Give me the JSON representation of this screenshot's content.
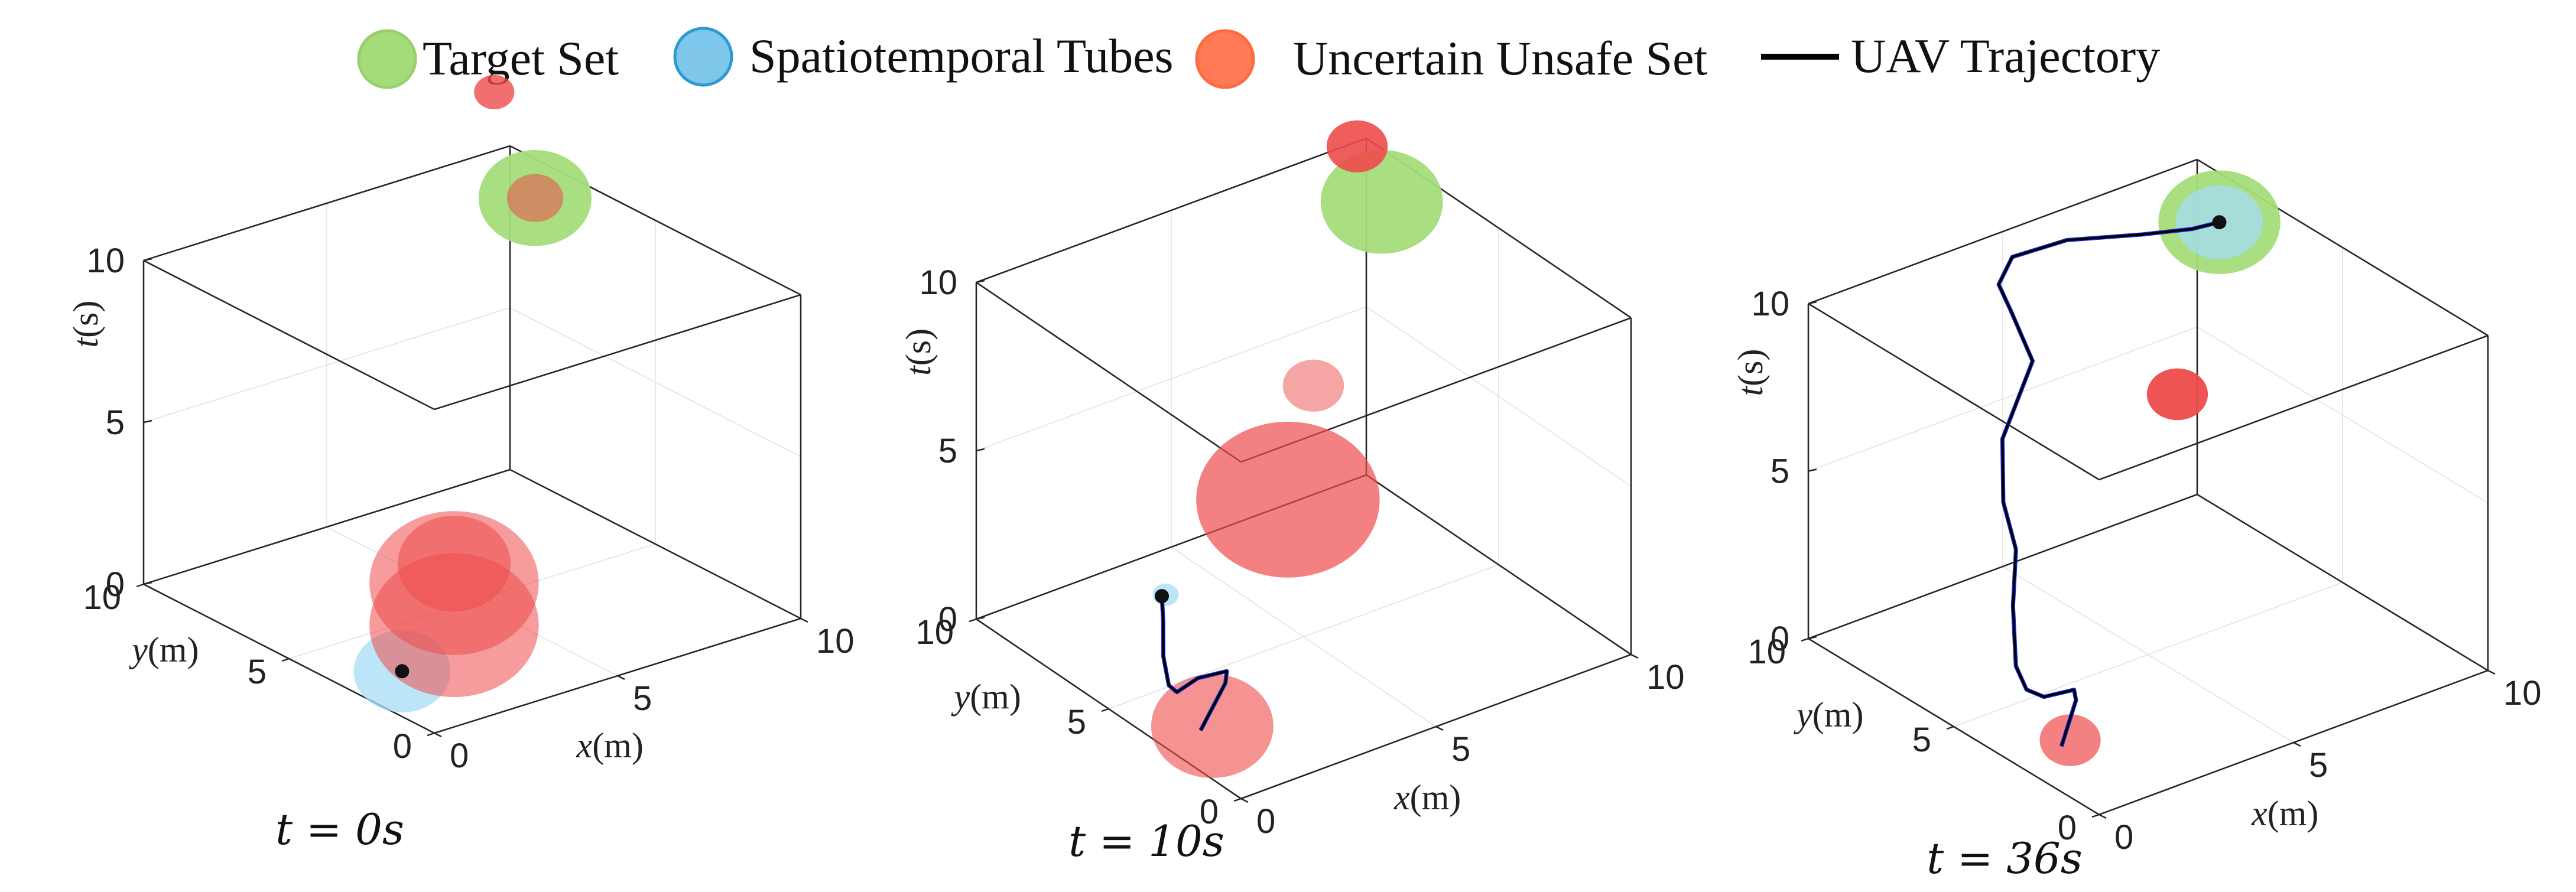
{
  "legend": [
    {
      "label": "Target Set",
      "color": "#a4dc7a",
      "stroke": "#97d06c",
      "kind": "circle"
    },
    {
      "label": "Spatiotemporal Tubes",
      "color": "#7ec7ea",
      "stroke": "#2d9ad4",
      "kind": "circle"
    },
    {
      "label": "Uncertain Unsafe Set",
      "color": "#ff7a55",
      "stroke": "#ff6a40",
      "kind": "circle"
    },
    {
      "label": "UAV Trajectory",
      "color": "#000000",
      "kind": "line"
    }
  ],
  "axes": {
    "x_label": {
      "var": "x",
      "unit": "(m)"
    },
    "y_label": {
      "var": "y",
      "unit": "(m)"
    },
    "t_label": {
      "var": "t",
      "unit": "(s)"
    },
    "xy_ticks": [
      "0",
      "5",
      "10"
    ],
    "t_ticks": [
      "0",
      "5",
      "10"
    ]
  },
  "panels": [
    {
      "caption": {
        "var": "t",
        "eq": "=",
        "value": "0s"
      },
      "target": {
        "x": 8.7,
        "y": 7.5,
        "t": 10,
        "r": 1.4
      },
      "unsafe": [
        {
          "x": 8.3,
          "y": 8.4,
          "t": 13,
          "r": 0.5,
          "opacity": 0.8
        },
        {
          "x": 8.7,
          "y": 7.5,
          "t": 10,
          "r": 0.7,
          "opacity": 0.55
        },
        {
          "x": 5.3,
          "y": 6.0,
          "t": 0.6,
          "r": 1.4,
          "opacity": 0.55
        },
        {
          "x": 5.3,
          "y": 6.0,
          "t": 0.0,
          "r": 2.1,
          "opacity": 0.55
        },
        {
          "x": 5.3,
          "y": 6.0,
          "t": -1.3,
          "r": 2.1,
          "opacity": 0.55
        }
      ],
      "tubes": [
        {
          "x": 1.5,
          "y": 3.0,
          "t": 0,
          "r": 1.2
        }
      ],
      "trajectory": [],
      "uav": {
        "x": 1.5,
        "y": 3.0,
        "t": 0
      }
    },
    {
      "caption": {
        "var": "t",
        "eq": "=",
        "value": "10s"
      },
      "target": {
        "x": 8.7,
        "y": 7.5,
        "t": 10,
        "r": 1.4
      },
      "unsafe": [
        {
          "x": 8.0,
          "y": 7.4,
          "t": 12,
          "r": 0.7,
          "opacity": 0.9
        },
        {
          "x": 6.2,
          "y": 6.4,
          "t": 6.2,
          "r": 0.7,
          "opacity": 0.5
        },
        {
          "x": 4.8,
          "y": 5.3,
          "t": 4.0,
          "r": 2.1,
          "opacity": 0.7
        },
        {
          "x": 1.3,
          "y": 3.0,
          "t": 0.0,
          "r": 1.4,
          "opacity": 0.6
        }
      ],
      "tubes": [
        {
          "x": 1.6,
          "y": 5.2,
          "t": 2.6,
          "r": 0.3
        }
      ],
      "trajectory": [
        [
          1.0,
          3.0,
          0.0
        ],
        [
          1.5,
          2.8,
          1.3
        ],
        [
          1.4,
          2.6,
          1.8
        ],
        [
          1.0,
          3.1,
          1.5
        ],
        [
          0.8,
          3.6,
          0.9
        ],
        [
          1.0,
          4.2,
          0.7
        ],
        [
          1.2,
          4.7,
          1.2
        ],
        [
          1.4,
          5.0,
          2.0
        ],
        [
          1.5,
          5.2,
          2.6
        ]
      ],
      "uav": {
        "x": 1.5,
        "y": 5.2,
        "t": 2.6
      }
    },
    {
      "caption": {
        "var": "t",
        "eq": "=",
        "value": "36s"
      },
      "target": {
        "x": 8.7,
        "y": 7.5,
        "t": 10,
        "r": 1.4
      },
      "unsafe": [
        {
          "x": 6.5,
          "y": 6.0,
          "t": 6.6,
          "r": 0.7,
          "opacity": 0.95
        },
        {
          "x": 1.5,
          "y": 3.0,
          "t": 0.0,
          "r": 0.7,
          "opacity": 0.7
        }
      ],
      "tubes": [
        {
          "x": 8.7,
          "y": 7.5,
          "t": 10,
          "r": 1.0
        }
      ],
      "trajectory": [
        [
          1.2,
          2.9,
          0.0
        ],
        [
          1.5,
          2.8,
          1.3
        ],
        [
          1.3,
          2.6,
          1.8
        ],
        [
          0.9,
          3.1,
          1.5
        ],
        [
          0.9,
          3.7,
          1.4
        ],
        [
          1.0,
          4.2,
          1.8
        ],
        [
          1.3,
          4.7,
          3.2
        ],
        [
          1.6,
          5.0,
          4.6
        ],
        [
          1.5,
          5.3,
          5.9
        ],
        [
          2.0,
          6.0,
          7.2
        ],
        [
          3.3,
          6.7,
          8.6
        ],
        [
          3.2,
          7.3,
          9.8
        ],
        [
          3.1,
          7.6,
          10.5
        ],
        [
          3.6,
          7.8,
          11.0
        ],
        [
          5.0,
          7.8,
          10.9
        ],
        [
          6.8,
          7.6,
          10.4
        ],
        [
          8.0,
          7.5,
          10.1
        ],
        [
          8.7,
          7.5,
          10.0
        ]
      ],
      "uav": {
        "x": 8.7,
        "y": 7.5,
        "t": 10.0
      }
    }
  ]
}
